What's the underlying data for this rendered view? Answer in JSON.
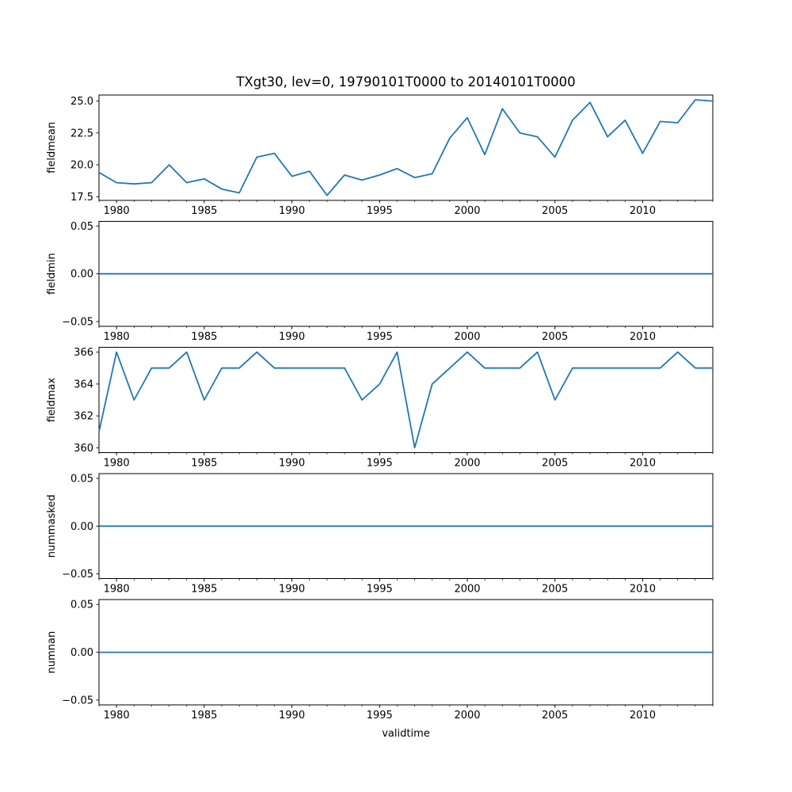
{
  "title": "TXgt30, lev=0, 19790101T0000 to 20140101T0000",
  "chart_data": {
    "type": "line",
    "title": "TXgt30, lev=0, 19790101T0000 to 20140101T0000",
    "xlabel": "validtime",
    "legend": "none",
    "grid": false,
    "line_color": "#1f77b4",
    "axis_color": "#000000",
    "xlim": [
      1979,
      2014
    ],
    "xticks_major": [
      1980,
      1985,
      1990,
      1995,
      2000,
      2005,
      2010
    ],
    "xtick_labels": [
      "1980",
      "1985",
      "1990",
      "1995",
      "2000",
      "2005",
      "2010"
    ],
    "x": [
      1979,
      1980,
      1981,
      1982,
      1983,
      1984,
      1985,
      1986,
      1987,
      1988,
      1989,
      1990,
      1991,
      1992,
      1993,
      1994,
      1995,
      1996,
      1997,
      1998,
      1999,
      2000,
      2001,
      2002,
      2003,
      2004,
      2005,
      2006,
      2007,
      2008,
      2009,
      2010,
      2011,
      2012,
      2013,
      2014
    ],
    "subplots": [
      {
        "ylabel": "fieldmean",
        "ylim": [
          17.225,
          25.475
        ],
        "yticks": [
          17.5,
          20.0,
          22.5,
          25.0
        ],
        "ytick_labels": [
          "17.5",
          "20.0",
          "22.5",
          "25.0"
        ],
        "values": [
          19.4,
          18.6,
          18.5,
          18.6,
          20.0,
          18.6,
          18.9,
          18.1,
          17.8,
          20.6,
          20.9,
          19.1,
          19.5,
          17.6,
          19.2,
          18.8,
          19.2,
          19.7,
          19.0,
          19.3,
          22.1,
          23.7,
          20.8,
          24.4,
          22.5,
          22.2,
          20.6,
          23.5,
          24.9,
          22.2,
          23.5,
          20.9,
          23.4,
          23.3,
          25.1,
          25.0
        ]
      },
      {
        "ylabel": "fieldmin",
        "ylim": [
          -0.055,
          0.055
        ],
        "yticks": [
          -0.05,
          0.0,
          0.05
        ],
        "ytick_labels": [
          "−0.05",
          "0.00",
          "0.05"
        ],
        "values": [
          0,
          0,
          0,
          0,
          0,
          0,
          0,
          0,
          0,
          0,
          0,
          0,
          0,
          0,
          0,
          0,
          0,
          0,
          0,
          0,
          0,
          0,
          0,
          0,
          0,
          0,
          0,
          0,
          0,
          0,
          0,
          0,
          0,
          0,
          0,
          0
        ]
      },
      {
        "ylabel": "fieldmax",
        "ylim": [
          359.7,
          366.3
        ],
        "yticks": [
          360,
          362,
          364,
          366
        ],
        "ytick_labels": [
          "360",
          "362",
          "364",
          "366"
        ],
        "values": [
          361,
          366,
          363,
          365,
          365,
          366,
          363,
          365,
          365,
          366,
          365,
          365,
          365,
          365,
          365,
          363,
          364,
          366,
          360,
          364,
          365,
          366,
          365,
          365,
          365,
          366,
          363,
          365,
          365,
          365,
          365,
          365,
          365,
          366,
          365,
          365
        ]
      },
      {
        "ylabel": "nummasked",
        "ylim": [
          -0.055,
          0.055
        ],
        "yticks": [
          -0.05,
          0.0,
          0.05
        ],
        "ytick_labels": [
          "−0.05",
          "0.00",
          "0.05"
        ],
        "values": [
          0,
          0,
          0,
          0,
          0,
          0,
          0,
          0,
          0,
          0,
          0,
          0,
          0,
          0,
          0,
          0,
          0,
          0,
          0,
          0,
          0,
          0,
          0,
          0,
          0,
          0,
          0,
          0,
          0,
          0,
          0,
          0,
          0,
          0,
          0,
          0
        ]
      },
      {
        "ylabel": "numnan",
        "ylim": [
          -0.055,
          0.055
        ],
        "yticks": [
          -0.05,
          0.0,
          0.05
        ],
        "ytick_labels": [
          "−0.05",
          "0.00",
          "0.05"
        ],
        "values": [
          0,
          0,
          0,
          0,
          0,
          0,
          0,
          0,
          0,
          0,
          0,
          0,
          0,
          0,
          0,
          0,
          0,
          0,
          0,
          0,
          0,
          0,
          0,
          0,
          0,
          0,
          0,
          0,
          0,
          0,
          0,
          0,
          0,
          0,
          0,
          0
        ]
      }
    ]
  }
}
